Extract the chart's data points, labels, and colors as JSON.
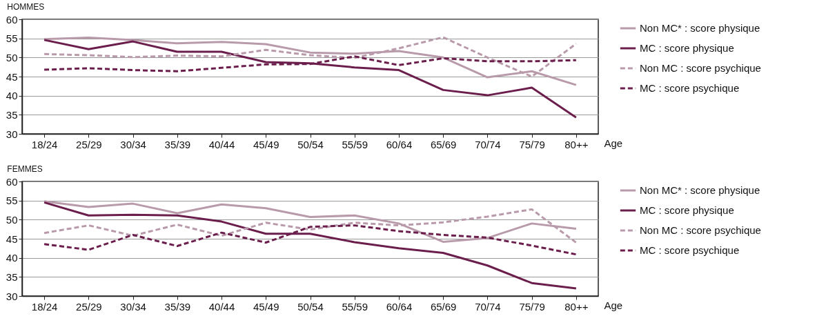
{
  "chart_data": [
    {
      "type": "line",
      "title": "HOMMES",
      "xlabel": "Age",
      "categories": [
        "18/24",
        "25/29",
        "30/34",
        "35/39",
        "40/44",
        "45/49",
        "50/54",
        "55/59",
        "60/64",
        "65/69",
        "70/74",
        "75/79",
        "80++"
      ],
      "ylim": [
        30,
        60
      ],
      "yticks": [
        30,
        35,
        40,
        45,
        50,
        55,
        60
      ],
      "grid": "y",
      "legend": "right",
      "series": [
        {
          "name": "Non MC* : score physique",
          "color": "#b89aab",
          "line_style": "solid",
          "values": [
            54.8,
            55.2,
            54.6,
            53.7,
            54.1,
            53.5,
            51.3,
            51.0,
            51.7,
            50.0,
            44.8,
            46.4,
            42.8
          ]
        },
        {
          "name": "MC : score physique",
          "color": "#6b1e4c",
          "line_style": "solid",
          "values": [
            54.6,
            52.2,
            54.2,
            51.5,
            51.5,
            48.8,
            48.5,
            47.4,
            46.7,
            41.5,
            40.1,
            42.1,
            34.3
          ]
        },
        {
          "name": "Non MC : score psychique",
          "color": "#b89aab",
          "line_style": "dashed",
          "values": [
            50.9,
            50.6,
            50.1,
            50.5,
            50.3,
            52.0,
            50.6,
            49.9,
            52.4,
            55.3,
            50.0,
            45.0,
            53.6
          ]
        },
        {
          "name": "MC : score psychique",
          "color": "#6b1e4c",
          "line_style": "dashed",
          "values": [
            46.8,
            47.2,
            46.7,
            46.4,
            47.3,
            48.2,
            48.3,
            50.3,
            48.0,
            49.8,
            49.0,
            49.0,
            49.3
          ]
        }
      ]
    },
    {
      "type": "line",
      "title": "FEMMES",
      "xlabel": "Age",
      "categories": [
        "18/24",
        "25/29",
        "30/34",
        "35/39",
        "40/44",
        "45/49",
        "50/54",
        "55/59",
        "60/64",
        "65/69",
        "70/74",
        "75/79",
        "80++"
      ],
      "ylim": [
        30,
        60
      ],
      "yticks": [
        30,
        35,
        40,
        45,
        50,
        55,
        60
      ],
      "grid": "y",
      "legend": "right",
      "series": [
        {
          "name": "Non MC* : score physique",
          "color": "#b89aab",
          "line_style": "solid",
          "values": [
            54.8,
            53.3,
            54.2,
            51.7,
            54.0,
            53.0,
            50.7,
            51.1,
            49.0,
            44.2,
            45.2,
            49.0,
            47.6
          ]
        },
        {
          "name": "MC : score physique",
          "color": "#6b1e4c",
          "line_style": "solid",
          "values": [
            54.5,
            51.1,
            51.3,
            51.1,
            49.5,
            46.3,
            46.3,
            44.1,
            42.5,
            41.3,
            38.0,
            33.4,
            32.0
          ]
        },
        {
          "name": "Non MC : score psychique",
          "color": "#b89aab",
          "line_style": "dashed",
          "values": [
            46.5,
            48.5,
            45.8,
            48.7,
            45.8,
            49.2,
            47.4,
            49.2,
            48.5,
            49.3,
            50.8,
            52.7,
            44.0
          ]
        },
        {
          "name": "MC : score psychique",
          "color": "#6b1e4c",
          "line_style": "dashed",
          "values": [
            43.6,
            42.1,
            46.0,
            43.1,
            46.6,
            44.0,
            48.1,
            48.5,
            47.0,
            46.0,
            45.3,
            43.2,
            40.9
          ]
        }
      ]
    }
  ]
}
